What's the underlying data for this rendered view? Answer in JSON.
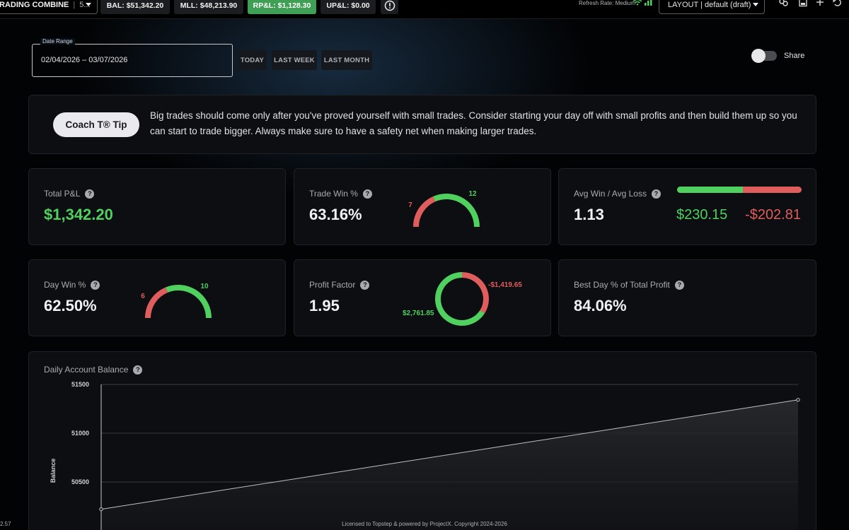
{
  "topbar": {
    "account_name": "RADING COMBINE",
    "account_suffix": "5...",
    "balance": "BAL: $51,342.20",
    "mll": "MLL: $48,213.90",
    "realized_pnl": "RP&L: $1,128.30",
    "unrealized_pnl": "UP&L: $0.00",
    "refresh_rate": "Refresh Rate: Medium",
    "layout": "LAYOUT | default (draft)"
  },
  "filters": {
    "date_range_label": "Date Range",
    "date_range_value": "02/04/2026 – 03/07/2026",
    "today": "TODAY",
    "last_week": "LAST WEEK",
    "last_month": "LAST MONTH",
    "share": "Share",
    "share_enabled": false
  },
  "coach": {
    "button": "Coach T® Tip",
    "tip": "Big trades should come only after you've proved yourself with small trades. Consider starting your day off with small profits and then build them up so you can start to trade bigger. Always make sure to have a safety net when making larger trades."
  },
  "metrics": {
    "total_pnl": {
      "label": "Total P&L",
      "value": "$1,342.20"
    },
    "trade_win": {
      "label": "Trade Win %",
      "value": "63.16%",
      "wins": 12,
      "losses": 7
    },
    "avg_win_loss": {
      "label": "Avg Win / Avg Loss",
      "value": "1.13",
      "avg_win": "$230.15",
      "avg_loss": "-$202.81",
      "win_share": 0.53
    },
    "day_win": {
      "label": "Day Win %",
      "value": "62.50%",
      "wins": 10,
      "losses": 6
    },
    "profit_factor": {
      "label": "Profit Factor",
      "value": "1.95",
      "gross_profit": "$2,761.85",
      "gross_loss": "-$1,419.65",
      "profit_amount": 2761.85,
      "loss_amount": 1419.65
    },
    "best_day": {
      "label": "Best Day % of Total Profit",
      "value": "84.06%"
    }
  },
  "balance_chart": {
    "title": "Daily Account Balance",
    "chart_data": {
      "type": "area",
      "title": "Daily Account Balance",
      "xlabel": "",
      "ylabel": "Balance",
      "ylim": [
        50200,
        51500
      ],
      "yticks": [
        51500,
        51000,
        50500
      ],
      "x": [
        0,
        1
      ],
      "values": [
        50220,
        51342.2
      ],
      "grid": true
    }
  },
  "footer": {
    "license": "Licensed to Topstep & powered by ProjectX. Copyright 2024-2026",
    "version": "2.57"
  },
  "colors": {
    "win": "#4fd05f",
    "loss": "#e05d5d",
    "accent_pill": "#3fa055"
  }
}
